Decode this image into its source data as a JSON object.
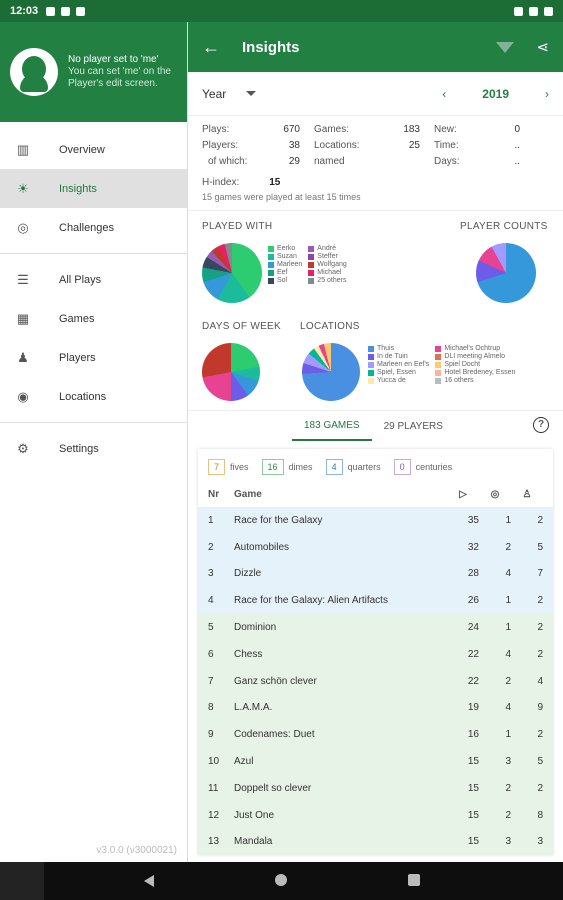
{
  "statusbar": {
    "time": "12:03"
  },
  "drawer": {
    "head_line1": "No player set to 'me'",
    "head_line2": "You can set 'me' on the Player's edit screen.",
    "items": [
      {
        "label": "Overview",
        "icon": "bar-chart-icon"
      },
      {
        "label": "Insights",
        "icon": "lightbulb-icon"
      },
      {
        "label": "Challenges",
        "icon": "target-icon"
      },
      {
        "label": "All Plays",
        "icon": "list-icon"
      },
      {
        "label": "Games",
        "icon": "board-icon"
      },
      {
        "label": "Players",
        "icon": "person-icon"
      },
      {
        "label": "Locations",
        "icon": "location-icon"
      },
      {
        "label": "Settings",
        "icon": "gear-icon"
      }
    ],
    "version": "v3.0.0 (v3000021)"
  },
  "appbar": {
    "title": "Insights"
  },
  "period": {
    "label": "Year",
    "year": "2019"
  },
  "stats": {
    "plays_label": "Plays:",
    "plays": "670",
    "games_label": "Games:",
    "games": "183",
    "new_label": "New:",
    "new": "0",
    "players_label": "Players:",
    "players": "38",
    "locations_label": "Locations:",
    "locations": "25",
    "time_label": "Time:",
    "time": "..",
    "of_which_label": "of which:",
    "named": "29",
    "named_label": "named",
    "days_label": "Days:",
    "days": "..",
    "hindex_label": "H-index:",
    "hindex": "15",
    "note": "15 games were played at least 15 times"
  },
  "charts": {
    "played_with": {
      "title": "PLAYED WITH",
      "legend": [
        "Eerko",
        "André",
        "Suzan",
        "Steffer",
        "Marleen",
        "Wolfgang",
        "Eef",
        "Michael",
        "Sol",
        "25 others"
      ],
      "colors": [
        "#2ecc71",
        "#9b59b6",
        "#1abc9c",
        "#8e44ad",
        "#3498db",
        "#c0392b",
        "#16a085",
        "#e91e63",
        "#34495e",
        "#7f8c8d"
      ]
    },
    "player_counts": {
      "title": "PLAYER COUNTS"
    },
    "days_of_week": {
      "title": "DAYS OF WEEK"
    },
    "locations": {
      "title": "LOCATIONS",
      "legend": [
        "Thuis",
        "Michael's Ochtrup",
        "In de Tuin",
        "DLI meeting Almelo",
        "Marleen en Eef's",
        "Spiel Docht",
        "Spiel, Essen",
        "Hotel Bredeney, Essen",
        "Yucca de",
        "16 others"
      ],
      "colors": [
        "#4a90e2",
        "#e84393",
        "#6c5ce7",
        "#e17055",
        "#a29bfe",
        "#fdcb6e",
        "#00b894",
        "#fab1a0",
        "#ffeaa7",
        "#b2bec3"
      ]
    }
  },
  "tabs": {
    "games": "183 GAMES",
    "players": "29 PLAYERS"
  },
  "badges": {
    "fives_n": "7",
    "fives": "fives",
    "dimes_n": "16",
    "dimes": "dimes",
    "quarters_n": "4",
    "quarters": "quarters",
    "centuries_n": "0",
    "centuries": "centuries"
  },
  "table": {
    "h_nr": "Nr",
    "h_game": "Game",
    "rows": [
      [
        "1",
        "Race for the Galaxy",
        "35",
        "1",
        "2"
      ],
      [
        "2",
        "Automobiles",
        "32",
        "2",
        "5"
      ],
      [
        "3",
        "Dizzle",
        "28",
        "4",
        "7"
      ],
      [
        "4",
        "Race for the Galaxy: Alien Artifacts",
        "26",
        "1",
        "2"
      ],
      [
        "5",
        "Dominion",
        "24",
        "1",
        "2"
      ],
      [
        "6",
        "Chess",
        "22",
        "4",
        "2"
      ],
      [
        "7",
        "Ganz schön clever",
        "22",
        "2",
        "4"
      ],
      [
        "8",
        "L.A.M.A.",
        "19",
        "4",
        "9"
      ],
      [
        "9",
        "Codenames: Duet",
        "16",
        "1",
        "2"
      ],
      [
        "10",
        "Azul",
        "15",
        "3",
        "5"
      ],
      [
        "11",
        "Doppelt so clever",
        "15",
        "2",
        "2"
      ],
      [
        "12",
        "Just One",
        "15",
        "2",
        "8"
      ],
      [
        "13",
        "Mandala",
        "15",
        "3",
        "3"
      ]
    ]
  }
}
